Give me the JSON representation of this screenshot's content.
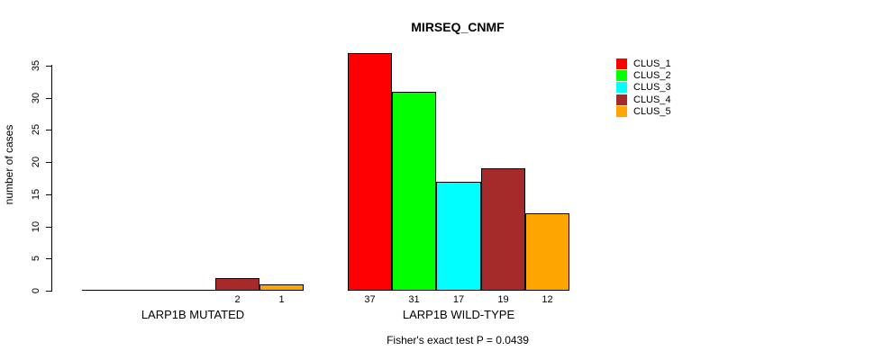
{
  "title": "MIRSEQ_CNMF",
  "caption": "Fisher's exact test P = 0.0439",
  "chart_data": {
    "type": "bar",
    "title": "MIRSEQ_CNMF",
    "ylabel": "number of cases",
    "xlabel": "",
    "groups": [
      "LARP1B MUTATED",
      "LARP1B WILD-TYPE"
    ],
    "series": [
      {
        "name": "CLUS_1",
        "color": "#FF0000",
        "values": [
          0,
          37
        ]
      },
      {
        "name": "CLUS_2",
        "color": "#00FF00",
        "values": [
          0,
          31
        ]
      },
      {
        "name": "CLUS_3",
        "color": "#00FFFF",
        "values": [
          0,
          17
        ]
      },
      {
        "name": "CLUS_4",
        "color": "#A52A2A",
        "values": [
          2,
          19
        ]
      },
      {
        "name": "CLUS_5",
        "color": "#FFA500",
        "values": [
          1,
          12
        ]
      }
    ],
    "bar_value_labels": [
      [
        null,
        null,
        null,
        "2",
        "1"
      ],
      [
        "37",
        "31",
        "17",
        "19",
        "12"
      ]
    ],
    "yticks": [
      0,
      5,
      10,
      15,
      20,
      25,
      30,
      35
    ],
    "ylim": [
      0,
      37
    ],
    "grid": false,
    "legend_position": "top-right",
    "bar_border_color": "#000000",
    "annotation": "Fisher's exact test P = 0.0439"
  }
}
